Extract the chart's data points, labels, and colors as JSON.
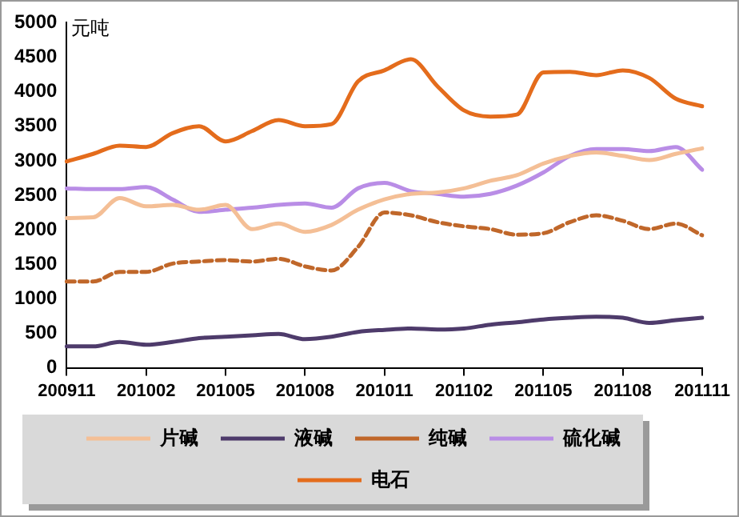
{
  "chart_data": {
    "type": "line",
    "ylabel": "元吨",
    "categories": [
      "200911",
      null,
      null,
      "201002",
      null,
      null,
      "201005",
      null,
      null,
      "201008",
      null,
      null,
      "201011",
      null,
      null,
      "201102",
      null,
      null,
      "201105",
      null,
      null,
      "201108",
      null,
      null,
      "201111"
    ],
    "series": [
      {
        "name": "片碱",
        "color": "#f4bf96",
        "values": [
          2170,
          2180,
          2460,
          2340,
          2360,
          2290,
          2360,
          2010,
          2090,
          1970,
          2070,
          2290,
          2440,
          2520,
          2540,
          2600,
          2710,
          2790,
          2960,
          3070,
          3120,
          3070,
          3010,
          3100,
          3180
        ]
      },
      {
        "name": "液碱",
        "color": "#4e3b6b",
        "values": [
          310,
          310,
          375,
          335,
          375,
          430,
          450,
          470,
          490,
          415,
          450,
          520,
          550,
          570,
          555,
          570,
          625,
          660,
          700,
          725,
          740,
          725,
          650,
          690,
          725
        ]
      },
      {
        "name": "纯碱",
        "color": "#c0672a",
        "line_style": "dashed",
        "values": [
          1250,
          1250,
          1390,
          1390,
          1510,
          1540,
          1560,
          1540,
          1580,
          1470,
          1410,
          1750,
          2250,
          2210,
          2110,
          2050,
          2010,
          1930,
          1950,
          2110,
          2210,
          2130,
          2010,
          2090,
          1920
        ]
      },
      {
        "name": "硫化碱",
        "color": "#b98de6",
        "values": [
          2600,
          2590,
          2590,
          2620,
          2440,
          2260,
          2290,
          2320,
          2360,
          2380,
          2320,
          2600,
          2680,
          2560,
          2520,
          2480,
          2520,
          2640,
          2830,
          3070,
          3170,
          3170,
          3140,
          3200,
          2870
        ]
      },
      {
        "name": "电石",
        "color": "#e46c1c",
        "values": [
          2990,
          3100,
          3220,
          3200,
          3400,
          3500,
          3280,
          3430,
          3590,
          3500,
          3530,
          4150,
          4310,
          4470,
          4080,
          3730,
          3640,
          3670,
          4280,
          4290,
          4240,
          4310,
          4200,
          3900,
          3790
        ]
      }
    ],
    "ylim": [
      0,
      5000
    ],
    "yticks": [
      0,
      500,
      1000,
      1500,
      2000,
      2500,
      3000,
      3500,
      4000,
      4500,
      5000
    ],
    "grid": false,
    "legend": "bottom",
    "marker": "none",
    "line_style": "solid"
  }
}
